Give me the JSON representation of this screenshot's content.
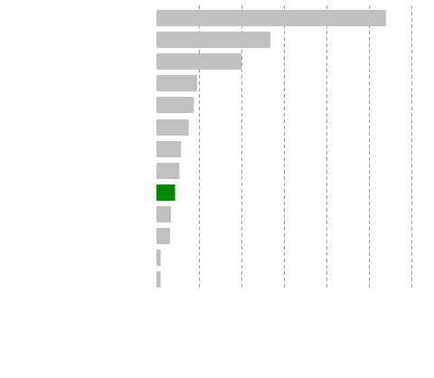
{
  "chart_data": {
    "type": "bar",
    "orientation": "horizontal",
    "title": "",
    "xlabel": "",
    "ylabel": "",
    "categories": [
      "",
      "",
      "",
      "",
      "",
      "",
      "",
      "",
      "",
      "",
      "",
      "",
      ""
    ],
    "values": [
      27,
      13.4,
      10,
      4.8,
      4.4,
      3.8,
      2.9,
      2.7,
      2.2,
      1.7,
      1.6,
      0.5,
      0.5
    ],
    "highlight_index": 8,
    "xlim": [
      0,
      30
    ],
    "x_gridlines": [
      5,
      10,
      15,
      20,
      25,
      30
    ],
    "grid": true,
    "bar_color": "#c0c0c0",
    "highlight_color": "#008c00",
    "grid_color": "#999999"
  }
}
